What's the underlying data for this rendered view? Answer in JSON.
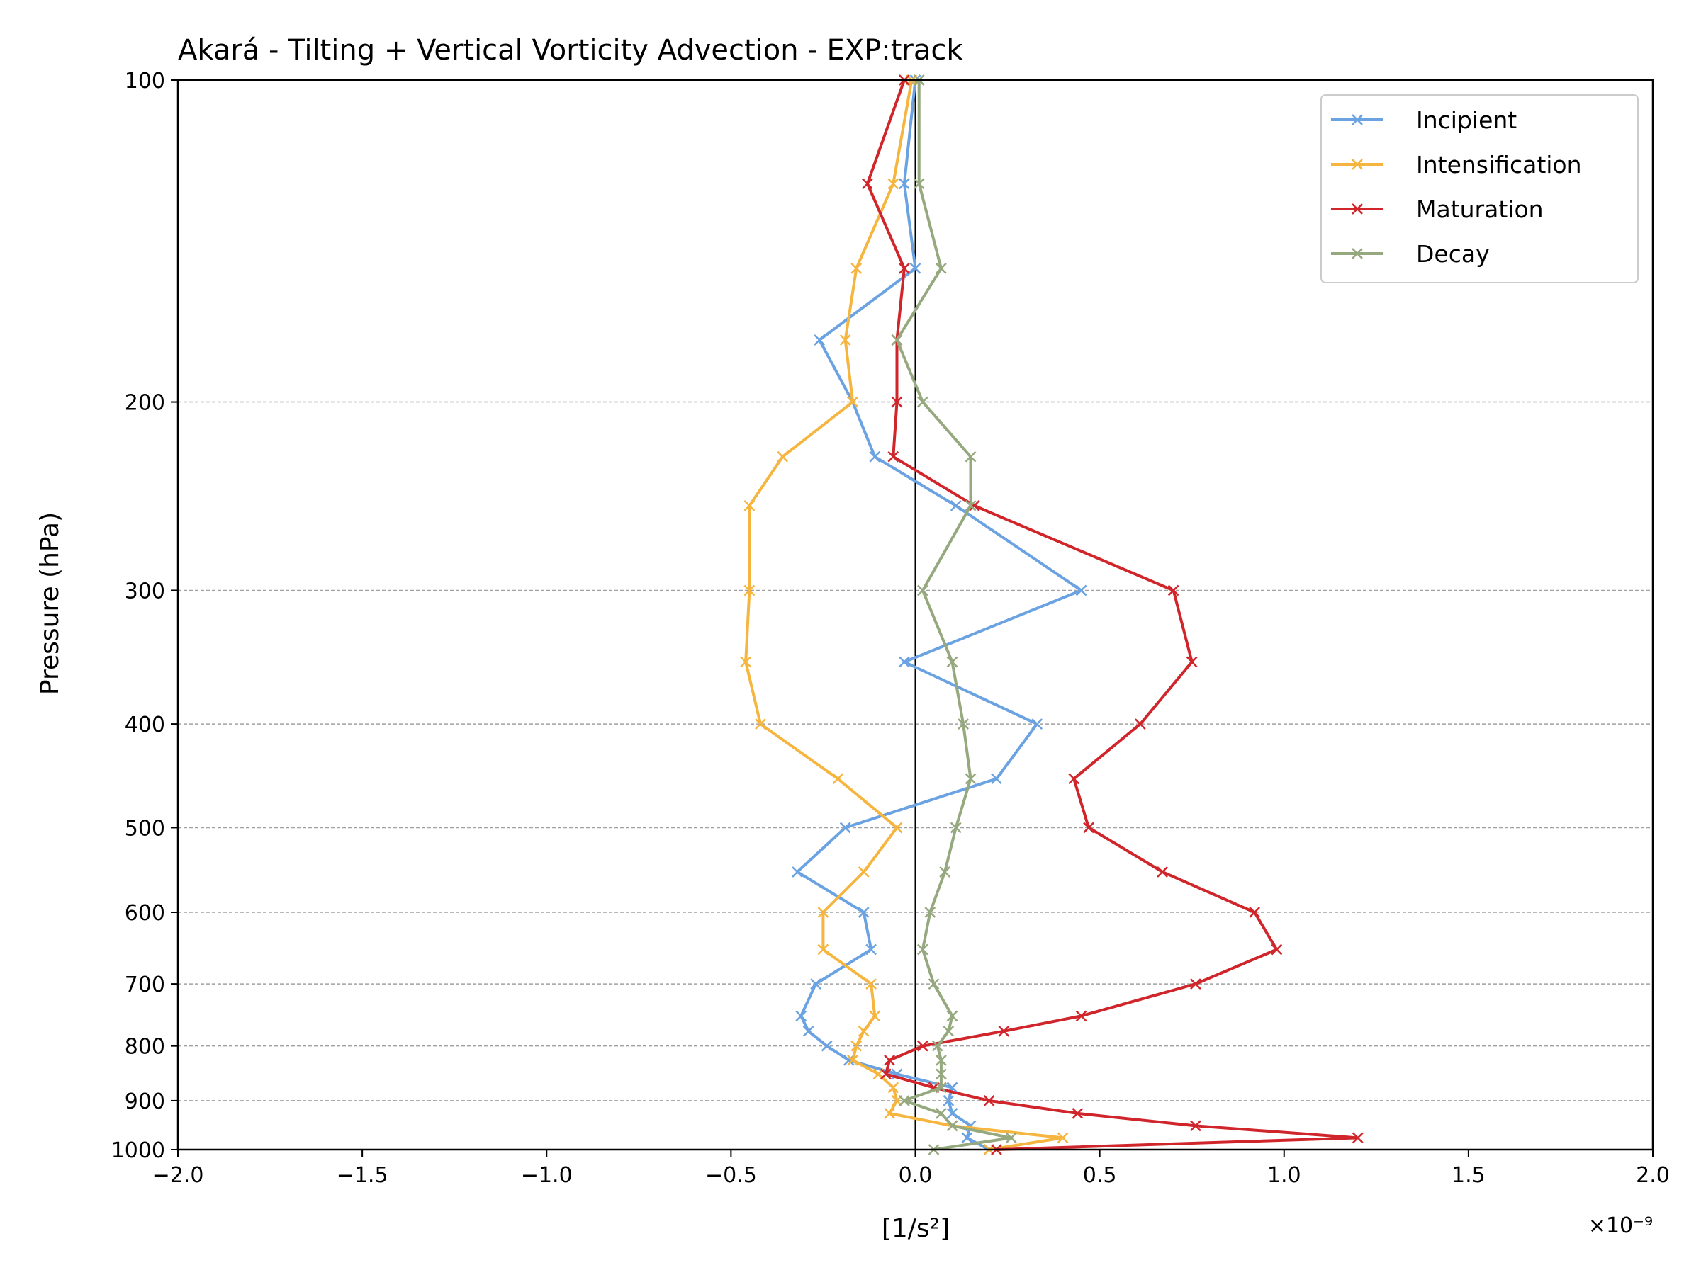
{
  "chart_data": {
    "type": "line",
    "title": "Akará - Tilting + Vertical Vorticity Advection - EXP:track",
    "xlabel": "[1/s²]",
    "ylabel": "Pressure (hPa)",
    "x_scale_label": "×10⁻⁹",
    "x_multiplier": 1e-09,
    "xlim": [
      -2.0,
      2.0
    ],
    "ylim": [
      1000,
      100
    ],
    "y_scale": "log",
    "x_ticks": [
      -2.0,
      -1.5,
      -1.0,
      -0.5,
      0.0,
      0.5,
      1.0,
      1.5,
      2.0
    ],
    "x_tick_labels": [
      "−2.0",
      "−1.5",
      "−1.0",
      "−0.5",
      "0.0",
      "0.5",
      "1.0",
      "1.5",
      "2.0"
    ],
    "y_ticks": [
      100,
      200,
      300,
      400,
      500,
      600,
      700,
      800,
      900,
      1000
    ],
    "y_tick_labels": [
      "100",
      "200",
      "300",
      "400",
      "500",
      "600",
      "700",
      "800",
      "900",
      "1000"
    ],
    "y_grid": [
      200,
      300,
      400,
      500,
      600,
      700,
      800,
      900
    ],
    "grid": "horizontal dashed",
    "legend_position": "top-right",
    "zero_line": true,
    "marker": "x",
    "pressure_levels": [
      1000,
      975,
      950,
      925,
      900,
      875,
      850,
      825,
      800,
      775,
      750,
      700,
      650,
      600,
      550,
      500,
      450,
      400,
      350,
      300,
      250,
      225,
      200,
      175,
      150,
      125,
      100
    ],
    "series": [
      {
        "name": "Incipient",
        "color": "#6aa2e2",
        "values": [
          0.2,
          0.14,
          0.15,
          0.1,
          0.09,
          0.1,
          -0.05,
          -0.18,
          -0.24,
          -0.29,
          -0.31,
          -0.27,
          -0.12,
          -0.14,
          -0.32,
          -0.19,
          0.22,
          0.33,
          -0.03,
          0.45,
          0.11,
          -0.11,
          -0.17,
          -0.26,
          0.0,
          -0.03,
          0.0
        ]
      },
      {
        "name": "Intensification",
        "color": "#f5b53f",
        "values": [
          0.2,
          0.4,
          0.1,
          -0.07,
          -0.05,
          -0.06,
          -0.1,
          -0.17,
          -0.16,
          -0.14,
          -0.11,
          -0.12,
          -0.25,
          -0.25,
          -0.14,
          -0.05,
          -0.21,
          -0.42,
          -0.46,
          -0.45,
          -0.45,
          -0.36,
          -0.17,
          -0.19,
          -0.16,
          -0.06,
          -0.01
        ]
      },
      {
        "name": "Maturation",
        "color": "#d0262b",
        "values": [
          0.22,
          1.2,
          0.76,
          0.44,
          0.2,
          0.05,
          -0.08,
          -0.07,
          0.02,
          0.24,
          0.45,
          0.76,
          0.98,
          0.92,
          0.67,
          0.47,
          0.43,
          0.61,
          0.75,
          0.7,
          0.16,
          -0.06,
          -0.05,
          -0.05,
          -0.03,
          -0.13,
          -0.03
        ]
      },
      {
        "name": "Decay",
        "color": "#95a87e",
        "values": [
          0.05,
          0.26,
          0.1,
          0.07,
          -0.03,
          0.07,
          0.07,
          0.07,
          0.06,
          0.09,
          0.1,
          0.05,
          0.02,
          0.04,
          0.08,
          0.11,
          0.15,
          0.13,
          0.1,
          0.02,
          0.15,
          0.15,
          0.02,
          -0.05,
          0.07,
          0.01,
          0.01
        ]
      }
    ]
  }
}
